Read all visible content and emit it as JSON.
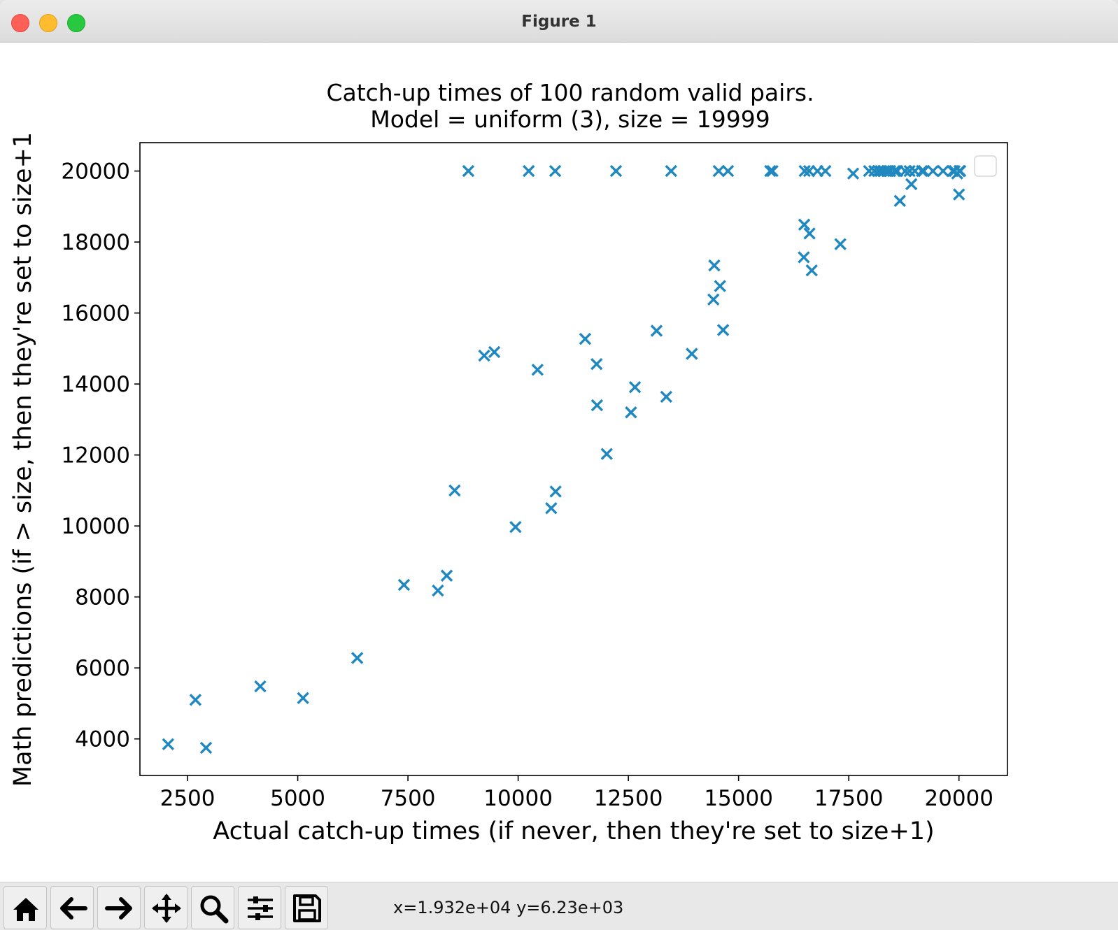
{
  "window": {
    "title": "Figure 1"
  },
  "toolbar": {
    "buttons": [
      {
        "name": "home-button",
        "icon": "home-icon"
      },
      {
        "name": "back-button",
        "icon": "arrow-left-icon"
      },
      {
        "name": "forward-button",
        "icon": "arrow-right-icon"
      },
      {
        "name": "pan-button",
        "icon": "move-icon"
      },
      {
        "name": "zoom-button",
        "icon": "search-icon"
      },
      {
        "name": "configure-subplots-button",
        "icon": "sliders-icon"
      },
      {
        "name": "save-button",
        "icon": "save-icon"
      }
    ],
    "coords": "x=1.932e+04 y=6.23e+03"
  },
  "chart_data": {
    "type": "scatter",
    "title": "Catch-up times of 100 random valid pairs.\nModel = uniform (3), size = 19999",
    "title_lines": [
      "Catch-up times of 100 random valid pairs.",
      "Model = uniform (3), size = 19999"
    ],
    "xlabel": "Actual catch-up times (if never, then they're set to size+1)",
    "ylabel": "Math predictions (if > size, then they're set to size+1",
    "xlim": [
      1420,
      21100
    ],
    "ylim": [
      2970,
      20800
    ],
    "xticks": [
      2500,
      5000,
      7500,
      10000,
      12500,
      15000,
      17500,
      20000
    ],
    "yticks": [
      4000,
      6000,
      8000,
      10000,
      12000,
      14000,
      16000,
      18000,
      20000
    ],
    "marker": "x",
    "color": "#1f88c0",
    "legend": "top-right (empty)",
    "grid": false,
    "points": [
      [
        2060,
        3850
      ],
      [
        2680,
        5100
      ],
      [
        2920,
        3750
      ],
      [
        4150,
        5480
      ],
      [
        5120,
        5150
      ],
      [
        6350,
        6280
      ],
      [
        7410,
        8340
      ],
      [
        8180,
        8180
      ],
      [
        8380,
        8600
      ],
      [
        8560,
        11000
      ],
      [
        8870,
        20000
      ],
      [
        9230,
        14800
      ],
      [
        9460,
        14900
      ],
      [
        9940,
        9970
      ],
      [
        10240,
        20000
      ],
      [
        10440,
        14400
      ],
      [
        10750,
        10500
      ],
      [
        10840,
        20000
      ],
      [
        10850,
        10970
      ],
      [
        11520,
        15270
      ],
      [
        11780,
        14560
      ],
      [
        11790,
        13400
      ],
      [
        12010,
        12030
      ],
      [
        12220,
        20000
      ],
      [
        12560,
        13200
      ],
      [
        12650,
        13910
      ],
      [
        13140,
        15500
      ],
      [
        13360,
        13640
      ],
      [
        13470,
        20000
      ],
      [
        13940,
        14850
      ],
      [
        14430,
        16380
      ],
      [
        14450,
        17340
      ],
      [
        14550,
        20000
      ],
      [
        14580,
        16760
      ],
      [
        14650,
        15520
      ],
      [
        14760,
        20000
      ],
      [
        15720,
        20000
      ],
      [
        15770,
        20000
      ],
      [
        16480,
        17570
      ],
      [
        16490,
        18490
      ],
      [
        16500,
        20000
      ],
      [
        16600,
        20000
      ],
      [
        16610,
        18240
      ],
      [
        16660,
        17200
      ],
      [
        16790,
        20000
      ],
      [
        16970,
        20000
      ],
      [
        17310,
        17940
      ],
      [
        17600,
        19930
      ],
      [
        17960,
        20000
      ],
      [
        18080,
        20000
      ],
      [
        18170,
        20000
      ],
      [
        18220,
        20000
      ],
      [
        18300,
        20000
      ],
      [
        18380,
        20000
      ],
      [
        18440,
        20000
      ],
      [
        18540,
        20000
      ],
      [
        18600,
        20000
      ],
      [
        18660,
        19160
      ],
      [
        18780,
        20000
      ],
      [
        18880,
        20000
      ],
      [
        18920,
        19630
      ],
      [
        19000,
        20000
      ],
      [
        19160,
        20000
      ],
      [
        19200,
        20000
      ],
      [
        19410,
        20000
      ],
      [
        19640,
        20000
      ],
      [
        19860,
        20000
      ],
      [
        19900,
        20000
      ],
      [
        19960,
        19930
      ],
      [
        20000,
        19340
      ],
      [
        20010,
        20000
      ],
      [
        20030,
        20000
      ]
    ]
  }
}
